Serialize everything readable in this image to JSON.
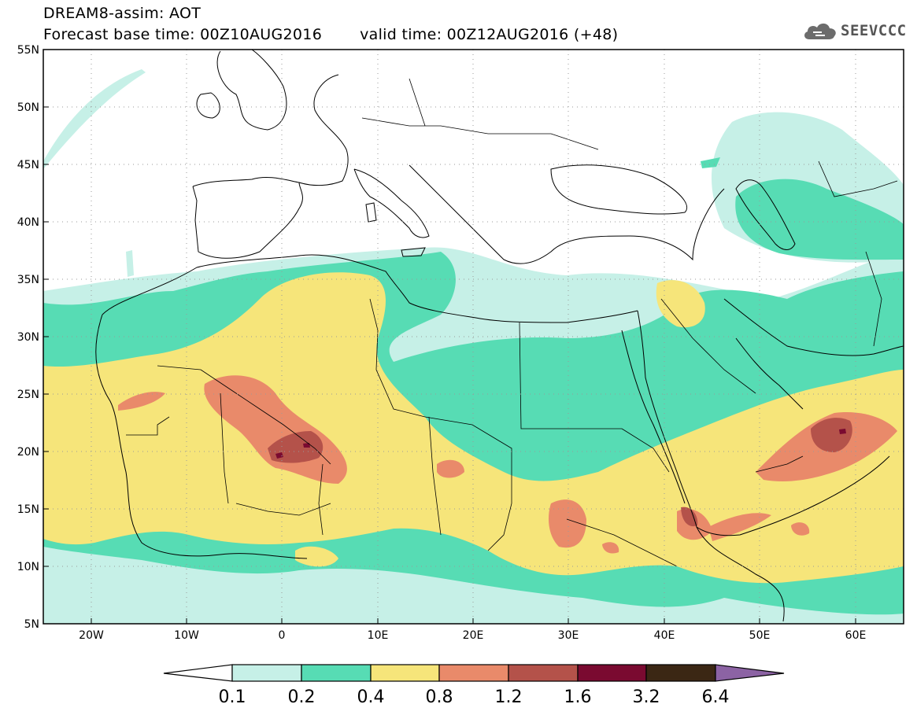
{
  "header": {
    "title": "DREAM8-assim: AOT",
    "forecast_base": "Forecast base time: 00Z10AUG2016",
    "valid_time": "valid time: 00Z12AUG2016 (+48)"
  },
  "logo": {
    "text": "SEEVCCC",
    "icon": "cloud-icon"
  },
  "map": {
    "lon_labels": [
      "20W",
      "10W",
      "0",
      "10E",
      "20E",
      "30E",
      "40E",
      "50E",
      "60E"
    ],
    "lat_labels": [
      "55N",
      "50N",
      "45N",
      "40N",
      "35N",
      "30N",
      "25N",
      "20N",
      "15N",
      "10N",
      "5N"
    ]
  },
  "colorbar": {
    "labels": [
      "0.1",
      "0.2",
      "0.4",
      "0.8",
      "1.2",
      "1.6",
      "3.2",
      "6.4"
    ],
    "colors": {
      "lt01": "#ffffff",
      "c1": "#c6f0e7",
      "c2": "#57dcb4",
      "c3": "#f6e57a",
      "c4": "#e98a6a",
      "c5": "#b4524a",
      "c6": "#7a0a30",
      "c7": "#3b2714",
      "gt64": "#8c63a4"
    }
  }
}
